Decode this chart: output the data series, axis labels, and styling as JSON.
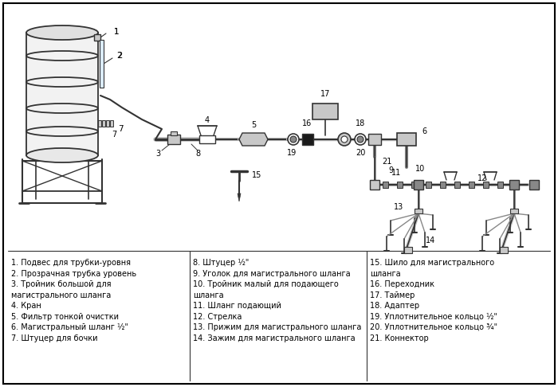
{
  "bg_color": "#ffffff",
  "border_color": "#000000",
  "lc": "#333333",
  "gray1": "#c8c8c8",
  "gray2": "#888888",
  "gray3": "#555555",
  "legend_col1": [
    "1. Подвес для трубки-уровня",
    "2. Прозрачная трубка уровень",
    "3. Тройник большой для",
    "магистрального шланга",
    "4. Кран",
    "5. Фильтр тонкой очистки",
    "6. Магистральный шланг ½\"",
    "7. Штуцер для бочки"
  ],
  "legend_col2": [
    "8. Штуцер ½\"",
    "9. Уголок для магистрального шланга",
    "10. Тройник малый для подающего",
    "шланга",
    "11. Шланг подающий",
    "12. Стрелка",
    "13. Прижим для магистрального шланга",
    "14. Зажим для магистрального шланга"
  ],
  "legend_col3": [
    "15. Шило для магистрального",
    "шланга",
    "16. Переходник",
    "17. Таймер",
    "18. Адаптер",
    "19. Уплотнительное кольцо ½\"",
    "20. Уплотнительное кольцо ¾\"",
    "21. Коннектор"
  ]
}
